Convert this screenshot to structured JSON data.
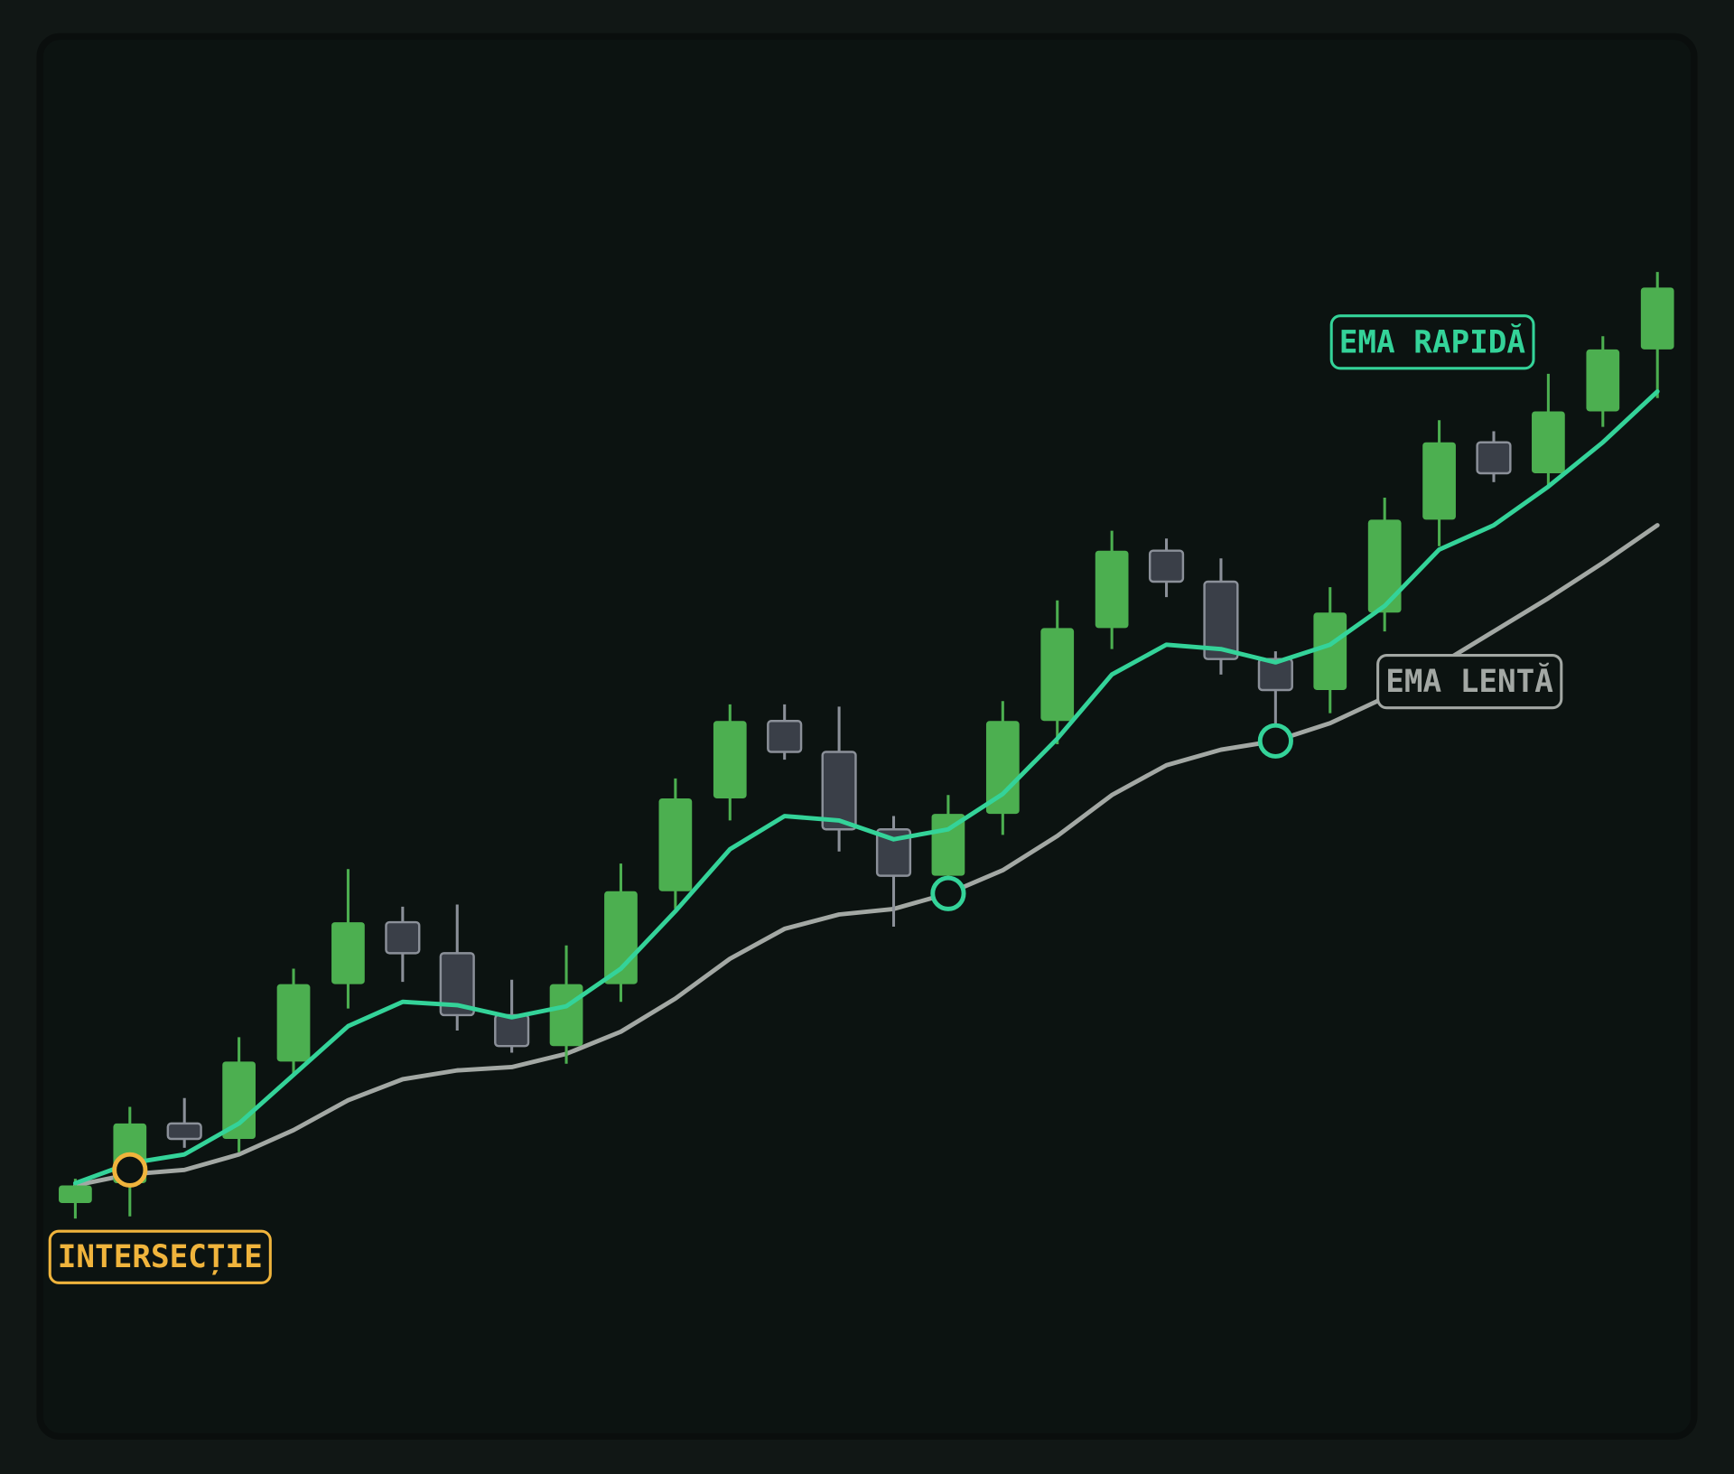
{
  "chart_data": {
    "type": "candlestick",
    "ylim": [
      0,
      100
    ],
    "candles": {
      "up_color": "#4caf50",
      "down_color": "#3a3f48",
      "down_stroke": "#8b9099",
      "open": [
        11.2,
        13.0,
        18.4,
        17.0,
        24.0,
        31.0,
        36.6,
        33.8,
        28.2,
        25.4,
        31.0,
        39.4,
        47.8,
        54.8,
        52.0,
        45.0,
        40.8,
        46.4,
        54.8,
        63.2,
        70.2,
        67.4,
        60.4,
        57.6,
        64.6,
        73.0,
        80.0,
        77.2,
        82.8,
        88.4
      ],
      "high": [
        13.4,
        19.9,
        20.7,
        26.2,
        32.4,
        41.4,
        38.0,
        38.2,
        31.4,
        34.5,
        41.9,
        49.6,
        56.3,
        56.3,
        56.1,
        46.2,
        48.1,
        56.6,
        65.7,
        72.0,
        71.3,
        69.5,
        61.1,
        66.9,
        75.0,
        82.0,
        81.0,
        86.2,
        89.6,
        95.4
      ],
      "low": [
        9.8,
        10.0,
        16.2,
        15.8,
        22.8,
        28.8,
        31.2,
        26.8,
        24.8,
        23.8,
        29.4,
        37.8,
        45.8,
        51.3,
        43.0,
        36.2,
        40.0,
        44.5,
        52.7,
        61.3,
        66.0,
        59.0,
        54.2,
        55.5,
        62.9,
        70.6,
        76.4,
        76.0,
        81.4,
        84.0
      ],
      "close": [
        12.8,
        18.4,
        17.0,
        24.0,
        31.0,
        36.6,
        33.8,
        28.2,
        25.4,
        31.0,
        39.4,
        47.8,
        54.8,
        52.0,
        45.0,
        40.8,
        46.4,
        54.8,
        63.2,
        70.2,
        67.4,
        60.4,
        57.6,
        64.6,
        73.0,
        80.0,
        77.2,
        82.8,
        88.4,
        94.0
      ]
    },
    "series": [
      {
        "name": "EMA RAPIDĂ",
        "color": "#34d399",
        "values": [
          13.0,
          14.8,
          15.6,
          18.4,
          22.8,
          27.2,
          29.4,
          29.1,
          28.0,
          29.0,
          32.4,
          37.6,
          43.2,
          46.2,
          45.8,
          44.1,
          45.0,
          48.2,
          53.2,
          59.0,
          61.7,
          61.3,
          60.1,
          61.7,
          65.2,
          70.3,
          72.5,
          76.0,
          80.0,
          84.6
        ]
      },
      {
        "name": "EMA LENTĂ",
        "color": "#a3a8a4",
        "values": [
          12.8,
          13.8,
          14.2,
          15.6,
          17.8,
          20.5,
          22.4,
          23.2,
          23.5,
          24.7,
          26.7,
          29.7,
          33.3,
          36.0,
          37.3,
          37.8,
          39.2,
          41.3,
          44.4,
          48.1,
          50.8,
          52.2,
          53.0,
          54.6,
          56.9,
          59.9,
          62.9,
          65.9,
          69.1,
          72.5
        ]
      }
    ],
    "markers": [
      {
        "index": 1,
        "value": 14.2,
        "color": "#f0b43c",
        "label": "INTERSECȚIE"
      },
      {
        "index": 16,
        "value": 39.2,
        "color": "#34d399"
      },
      {
        "index": 22,
        "value": 53.0,
        "color": "#34d399"
      }
    ]
  }
}
